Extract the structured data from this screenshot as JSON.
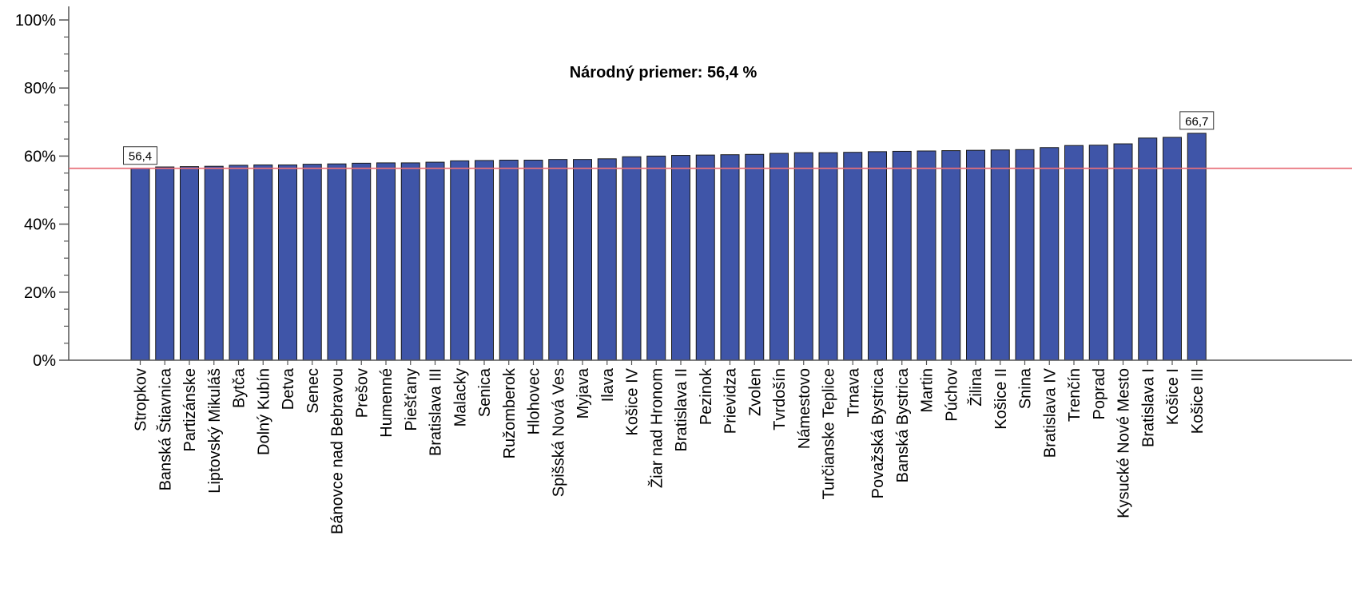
{
  "chart_data": {
    "type": "bar",
    "title": "",
    "xlabel": "",
    "ylabel": "",
    "ylim": [
      0,
      100
    ],
    "yticks": [
      "0%",
      "20%",
      "40%",
      "60%",
      "80%",
      "100%"
    ],
    "grid": false,
    "categories": [
      "Stropkov",
      "Banská Štiavnica",
      "Partizánske",
      "Liptovský Mikuláš",
      "Bytča",
      "Dolný Kubín",
      "Detva",
      "Senec",
      "Bánovce nad Bebravou",
      "Prešov",
      "Humenné",
      "Piešťany",
      "Bratislava III",
      "Malacky",
      "Senica",
      "Ružomberok",
      "Hlohovec",
      "Spišská Nová Ves",
      "Myjava",
      "Ilava",
      "Košice IV",
      "Žiar nad Hronom",
      "Bratislava II",
      "Pezinok",
      "Prievidza",
      "Zvolen",
      "Tvrdošín",
      "Námestovo",
      "Turčianske Teplice",
      "Trnava",
      "Považská Bystrica",
      "Banská Bystrica",
      "Martin",
      "Púchov",
      "Žilina",
      "Košice II",
      "Snina",
      "Bratislava IV",
      "Trenčín",
      "Poprad",
      "Kysucké Nové Mesto",
      "Bratislava I",
      "Košice I",
      "Košice III"
    ],
    "values": [
      56.4,
      56.8,
      56.9,
      57.0,
      57.3,
      57.4,
      57.4,
      57.6,
      57.7,
      57.9,
      58.0,
      58.0,
      58.2,
      58.6,
      58.7,
      58.8,
      58.8,
      59.0,
      59.0,
      59.2,
      59.8,
      60.0,
      60.2,
      60.3,
      60.4,
      60.5,
      60.8,
      61.0,
      61.0,
      61.1,
      61.3,
      61.4,
      61.5,
      61.6,
      61.7,
      61.8,
      61.9,
      62.5,
      63.1,
      63.2,
      63.6,
      65.3,
      65.5,
      66.7
    ],
    "data_labels": [
      {
        "index": 0,
        "text": "56,4"
      },
      {
        "index": 43,
        "text": "66,7"
      }
    ],
    "reference_line": {
      "value": 56.4,
      "label": "Národný priemer: 56,4 %",
      "color": "#e8707a"
    },
    "colors": {
      "bar_fill": "#3f55a8",
      "bar_stroke": "#1a1a1a",
      "axis": "#555555"
    }
  }
}
